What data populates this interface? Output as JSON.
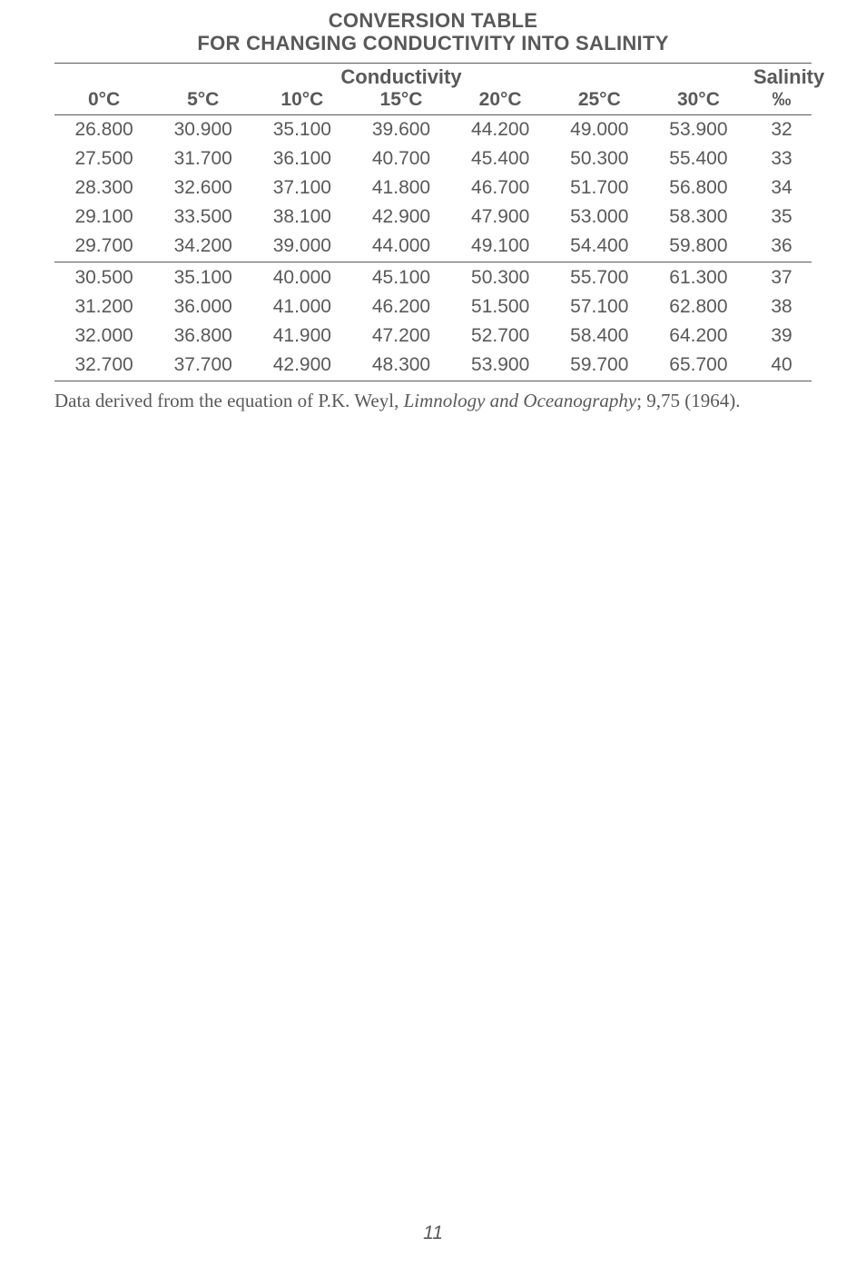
{
  "title": {
    "line1": "CONVERSION TABLE",
    "line2": "FOR CHANGING CONDUCTIVITY INTO SALINITY"
  },
  "table": {
    "groupHeaders": {
      "conductivity": "Conductivity",
      "salinity": "Salinity"
    },
    "columns": [
      "0°C",
      "5°C",
      "10°C",
      "15°C",
      "20°C",
      "25°C",
      "30°C",
      "‰"
    ],
    "rows": [
      [
        "26.800",
        "30.900",
        "35.100",
        "39.600",
        "44.200",
        "49.000",
        "53.900",
        "32"
      ],
      [
        "27.500",
        "31.700",
        "36.100",
        "40.700",
        "45.400",
        "50.300",
        "55.400",
        "33"
      ],
      [
        "28.300",
        "32.600",
        "37.100",
        "41.800",
        "46.700",
        "51.700",
        "56.800",
        "34"
      ],
      [
        "29.100",
        "33.500",
        "38.100",
        "42.900",
        "47.900",
        "53.000",
        "58.300",
        "35"
      ],
      [
        "29.700",
        "34.200",
        "39.000",
        "44.000",
        "49.100",
        "54.400",
        "59.800",
        "36"
      ],
      [
        "30.500",
        "35.100",
        "40.000",
        "45.100",
        "50.300",
        "55.700",
        "61.300",
        "37"
      ],
      [
        "31.200",
        "36.000",
        "41.000",
        "46.200",
        "51.500",
        "57.100",
        "62.800",
        "38"
      ],
      [
        "32.000",
        "36.800",
        "41.900",
        "47.200",
        "52.700",
        "58.400",
        "64.200",
        "39"
      ],
      [
        "32.700",
        "37.700",
        "42.900",
        "48.300",
        "53.900",
        "59.700",
        "65.700",
        "40"
      ]
    ],
    "separatorAfterRowIndex": 4
  },
  "caption": {
    "prefix": "Data derived from the equation of P.K. Weyl, ",
    "italic": "Limnology and Oceanography",
    "suffix": "; 9,75 (1964)."
  },
  "pageNumber": "11"
}
